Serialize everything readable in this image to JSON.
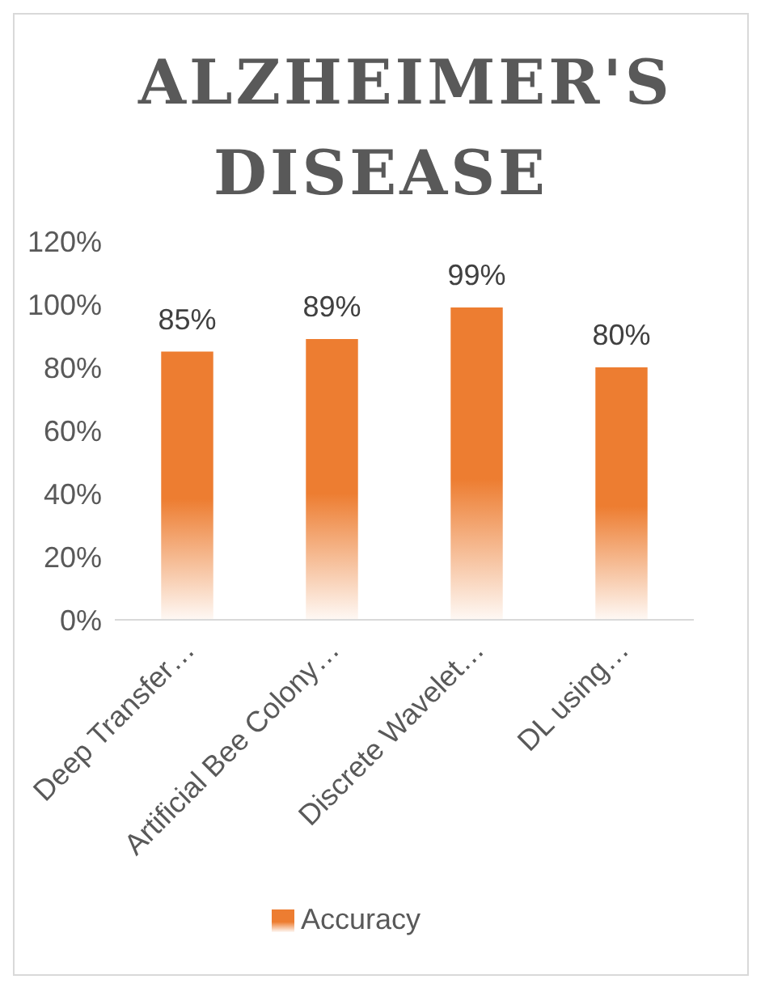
{
  "chart_data": {
    "type": "bar",
    "title": "ALZHEIMER'S DISEASE",
    "categories": [
      "Deep Transfer…",
      "Artificial Bee Colony…",
      "Discrete Wavelet…",
      "DL using…"
    ],
    "series": [
      {
        "name": "Accuracy",
        "color": "#ed7d31",
        "values": [
          85,
          89,
          99,
          80
        ],
        "value_labels": [
          "85%",
          "89%",
          "99%",
          "80%"
        ]
      }
    ],
    "ylim": [
      0,
      120
    ],
    "yticks": [
      {
        "value": 0,
        "label": "0%"
      },
      {
        "value": 20,
        "label": "20%"
      },
      {
        "value": 40,
        "label": "40%"
      },
      {
        "value": 60,
        "label": "60%"
      },
      {
        "value": 80,
        "label": "80%"
      },
      {
        "value": 100,
        "label": "100%"
      },
      {
        "value": 120,
        "label": "120%"
      }
    ],
    "grid": false,
    "legend": "bottom"
  }
}
